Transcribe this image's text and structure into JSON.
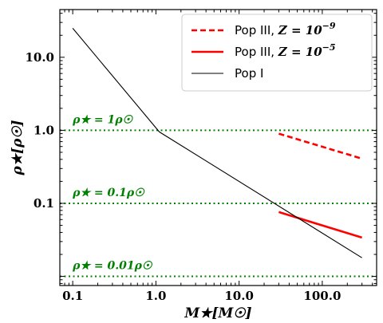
{
  "chart_data": {
    "type": "line",
    "title": "",
    "xlabel": "M★[M☉]",
    "ylabel": "ρ★[ρ☉]",
    "xscale": "log",
    "yscale": "log",
    "xlim": [
      0.07,
      450
    ],
    "ylim": [
      0.0075,
      45
    ],
    "grid": false,
    "legend_position": "top-right",
    "x_ticks": [
      {
        "value": 0.1,
        "label": "0.1"
      },
      {
        "value": 1,
        "label": "1.0"
      },
      {
        "value": 10,
        "label": "10.0"
      },
      {
        "value": 100,
        "label": "100.0"
      }
    ],
    "y_ticks": [
      {
        "value": 0.1,
        "label": "0.1"
      },
      {
        "value": 1,
        "label": "1.0"
      },
      {
        "value": 10,
        "label": "10.0"
      }
    ],
    "series": [
      {
        "name_text": "Pop III, ",
        "name_math": "Z = 10",
        "name_exp": "−9",
        "color": "#ff0000",
        "style": "dashed",
        "x": [
          30,
          300
        ],
        "y": [
          0.9,
          0.41
        ]
      },
      {
        "name_text": "Pop III, ",
        "name_math": "Z = 10",
        "name_exp": "−5",
        "color": "#ff0000",
        "style": "solid",
        "x": [
          30,
          300
        ],
        "y": [
          0.076,
          0.034
        ]
      },
      {
        "name_text": "Pop I",
        "name_math": "",
        "name_exp": "",
        "color": "#000000",
        "style": "solid",
        "x": [
          0.1,
          1.1,
          300
        ],
        "y": [
          25,
          0.95,
          0.018
        ]
      }
    ],
    "reference_lines": [
      {
        "y": 1,
        "color": "#008000",
        "label": "ρ★ = 1ρ☉",
        "label_x": 0.1
      },
      {
        "y": 0.1,
        "color": "#008000",
        "label": "ρ★ = 0.1ρ☉",
        "label_x": 0.1
      },
      {
        "y": 0.01,
        "color": "#008000",
        "label": "ρ★ = 0.01ρ☉",
        "label_x": 0.1
      }
    ]
  }
}
